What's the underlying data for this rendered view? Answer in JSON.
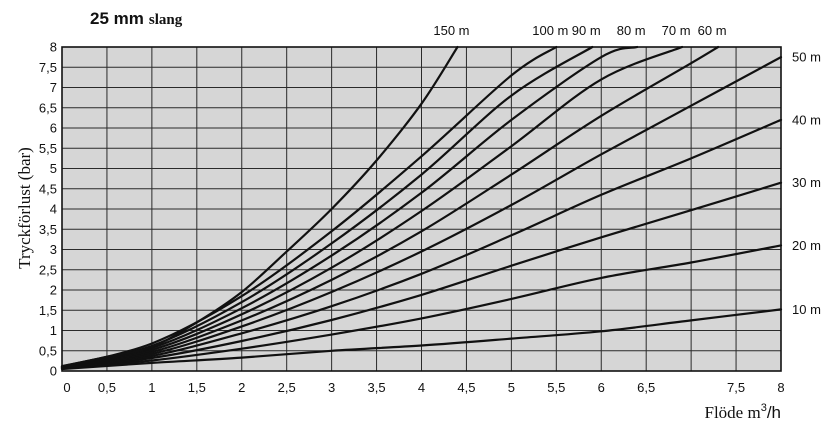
{
  "chart_data": {
    "type": "line",
    "title": {
      "bold": "25 mm",
      "rest": "slang"
    },
    "ylabel": "Tryckförlust (bar)",
    "xlabel": {
      "main": "Flöde m",
      "sup": "3",
      "unit_tail": "/h"
    },
    "xlim": [
      0,
      8
    ],
    "ylim": [
      0,
      8
    ],
    "x_ticks": [
      "0",
      "0,5",
      "1",
      "1,5",
      "2",
      "2,5",
      "3",
      "3,5",
      "4",
      "4,5",
      "5",
      "5,5",
      "6",
      "6,5",
      "7,5",
      "8"
    ],
    "y_ticks": [
      "0",
      "0,5",
      "1",
      "1,5",
      "2",
      "2,5",
      "3",
      "3,5",
      "4",
      "4,5",
      "5",
      "5,5",
      "6",
      "6,5",
      "7",
      "7,5",
      "8"
    ],
    "grid": true,
    "background": "#d6d6d6",
    "line_color": "#111111",
    "series": [
      {
        "name": "10 m",
        "length": 10,
        "x": [
          0,
          1,
          2,
          3,
          4,
          5,
          6,
          7,
          8
        ],
        "y": [
          0.05,
          0.2,
          0.33,
          0.5,
          0.63,
          0.8,
          0.98,
          1.25,
          1.52
        ]
      },
      {
        "name": "20 m",
        "length": 20,
        "x": [
          0,
          1,
          2,
          3,
          4,
          5,
          6,
          7,
          8
        ],
        "y": [
          0.06,
          0.26,
          0.55,
          0.9,
          1.3,
          1.78,
          2.3,
          2.68,
          3.1
        ]
      },
      {
        "name": "30 m",
        "length": 30,
        "x": [
          0,
          1,
          2,
          3,
          4,
          5,
          6,
          7,
          8
        ],
        "y": [
          0.07,
          0.32,
          0.74,
          1.26,
          1.88,
          2.6,
          3.3,
          3.97,
          4.65
        ]
      },
      {
        "name": "40 m",
        "length": 40,
        "x": [
          0,
          1,
          2,
          3,
          4,
          5,
          6,
          7,
          8
        ],
        "y": [
          0.07,
          0.37,
          0.93,
          1.6,
          2.4,
          3.35,
          4.35,
          5.25,
          6.2
        ]
      },
      {
        "name": "50 m",
        "length": 50,
        "x": [
          0,
          1,
          2,
          3,
          4,
          5,
          6,
          7,
          8
        ],
        "y": [
          0.08,
          0.42,
          1.1,
          1.95,
          2.95,
          4.1,
          5.35,
          6.55,
          7.75
        ]
      },
      {
        "name": "60 m",
        "length": 60,
        "x": [
          0,
          1,
          2,
          3,
          4,
          5,
          6,
          7,
          7.3
        ],
        "y": [
          0.09,
          0.47,
          1.25,
          2.25,
          3.45,
          4.85,
          6.3,
          7.6,
          8.0
        ]
      },
      {
        "name": "70 m",
        "length": 70,
        "x": [
          0,
          1,
          2,
          3,
          4,
          5,
          6,
          6.9
        ],
        "y": [
          0.09,
          0.52,
          1.4,
          2.55,
          3.95,
          5.55,
          7.2,
          8.0
        ]
      },
      {
        "name": "80 m",
        "length": 80,
        "x": [
          0,
          1,
          2,
          3,
          4,
          5,
          6,
          6.4
        ],
        "y": [
          0.1,
          0.57,
          1.55,
          2.85,
          4.4,
          6.2,
          7.75,
          8.0
        ]
      },
      {
        "name": "90 m",
        "length": 90,
        "x": [
          0,
          1,
          2,
          3,
          4,
          5,
          5.9
        ],
        "y": [
          0.1,
          0.62,
          1.7,
          3.15,
          4.85,
          6.8,
          8.0
        ]
      },
      {
        "name": "100 m",
        "length": 100,
        "x": [
          0,
          1,
          2,
          3,
          4,
          5,
          5.5
        ],
        "y": [
          0.11,
          0.68,
          1.85,
          3.45,
          5.3,
          7.3,
          8.0
        ]
      },
      {
        "name": "150 m",
        "length": 150,
        "x": [
          0,
          0.5,
          1,
          1.5,
          2,
          2.5,
          3,
          3.5,
          4,
          4.4
        ],
        "y": [
          0.12,
          0.35,
          0.6,
          1.2,
          1.95,
          2.95,
          4.0,
          5.2,
          6.6,
          8.0
        ]
      }
    ]
  }
}
